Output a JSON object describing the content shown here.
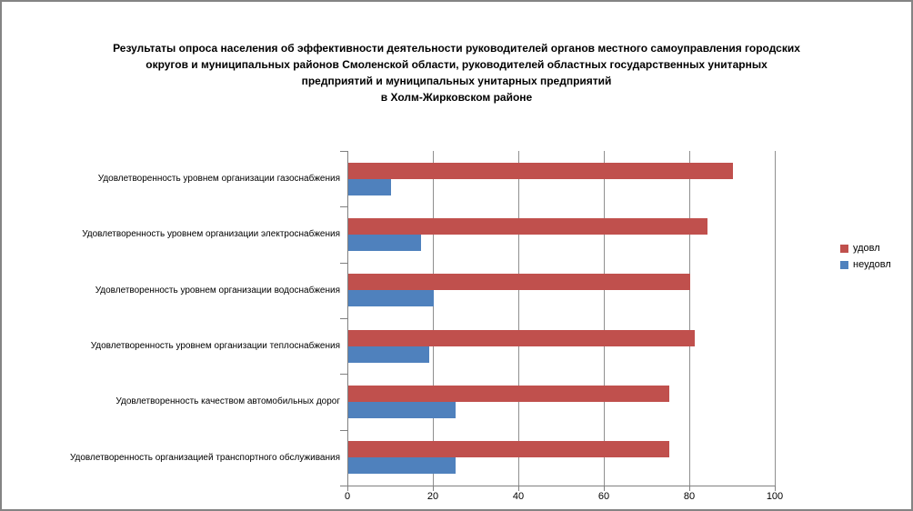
{
  "frame": {
    "background": "#ffffff",
    "border_color": "#848484"
  },
  "title": {
    "lines": [
      "Результаты опроса населения об эффективности деятельности руководителей органов местного самоуправления городских",
      "округов и муниципальных районов Смоленской области, руководителей областных государственных унитарных",
      "предприятий и муниципальных унитарных предприятий",
      "в Холм-Жирковском районе"
    ]
  },
  "chart_data": {
    "type": "bar",
    "orientation": "horizontal",
    "title": "Результаты опроса населения об эффективности деятельности руководителей органов местного самоуправления городских округов и муниципальных районов Смоленской области, руководителей областных государственных унитарных предприятий и муниципальных унитарных предприятий в Холм-Жирковском районе",
    "categories": [
      "Удовлетворенность уровнем организации газоснабжения",
      "Удовлетворенность уровнем организации электроснабжения",
      "Удовлетворенность уровнем организации водоснабжения",
      "Удовлетворенность уровнем организации теплоснабжения",
      "Удовлетворенность качеством автомобильных дорог",
      "Удовлетворенность организацией транспортного обслуживания"
    ],
    "series": [
      {
        "name": "удовл",
        "color": "#C0504D",
        "values": [
          90,
          84,
          80,
          81,
          75,
          75
        ]
      },
      {
        "name": "неудовл",
        "color": "#4F81BD",
        "values": [
          10,
          17,
          20,
          19,
          25,
          25
        ]
      }
    ],
    "xlim": [
      0,
      100
    ],
    "xticks": [
      0,
      20,
      40,
      60,
      80,
      100
    ],
    "grid": "vertical",
    "legend_position": "right",
    "axis_color": "#808080",
    "gridline_color": "#8f8f8f",
    "text_color": "#000000"
  }
}
